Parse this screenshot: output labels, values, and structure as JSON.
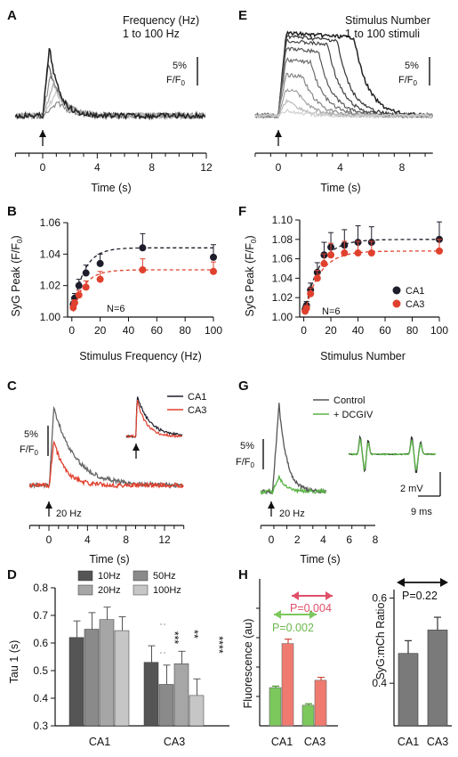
{
  "colors": {
    "ca1": "#1d1d2b",
    "ca3": "#e0412e",
    "control": "#555555",
    "dcgiv": "#5ab446",
    "g1": "#555555",
    "g2": "#8a8a8a",
    "g3": "#a8a8a8",
    "g4": "#c8c8c8",
    "hgreen": "#7cc85d",
    "hred": "#ef7b70",
    "hgrey": "#7a7a7a",
    "arrowRed": "#e0506a"
  },
  "chart_data": [
    {
      "panel": "A",
      "type": "line",
      "legend": [
        "Frequency (Hz)",
        "1 to 100 Hz"
      ],
      "scalebar": [
        "5%",
        "F/F",
        "0"
      ],
      "xlabel": "Time (s)",
      "xlim": [
        -2,
        12
      ],
      "xticks": [
        "0",
        "4",
        "8",
        "12"
      ],
      "stimulus_time": 0,
      "series": [
        {
          "peak_time": 0.4,
          "amplitude_pct": 6.5
        },
        {
          "peak_time": 0.6,
          "amplitude_pct": 5.2
        },
        {
          "peak_time": 0.8,
          "amplitude_pct": 4.0
        },
        {
          "peak_time": 1.0,
          "amplitude_pct": 2.8
        },
        {
          "peak_time": 1.2,
          "amplitude_pct": 1.6
        }
      ]
    },
    {
      "panel": "E",
      "type": "line",
      "legend": [
        "Stimulus Number",
        "1 to 100 stimuli"
      ],
      "scalebar": [
        "5%",
        "F/F",
        "0"
      ],
      "xlabel": "Time (s)",
      "xlim": [
        -1.5,
        10
      ],
      "xticks": [
        "0",
        "4",
        "8"
      ],
      "stimulus_time": 0,
      "series": [
        {
          "plateau_end": 4.9,
          "amplitude_pct": 11
        },
        {
          "plateau_end": 3.8,
          "amplitude_pct": 10.6
        },
        {
          "plateau_end": 3.2,
          "amplitude_pct": 10.0
        },
        {
          "plateau_end": 2.6,
          "amplitude_pct": 9.0
        },
        {
          "plateau_end": 2.1,
          "amplitude_pct": 7.5
        },
        {
          "plateau_end": 1.6,
          "amplitude_pct": 5.5
        },
        {
          "plateau_end": 1.2,
          "amplitude_pct": 3.5
        },
        {
          "plateau_end": 0.8,
          "amplitude_pct": 2.0
        },
        {
          "plateau_end": 0.5,
          "amplitude_pct": 0.8
        }
      ]
    },
    {
      "panel": "B",
      "type": "scatter",
      "xlabel": "Stimulus Frequency (Hz)",
      "ylabel": [
        "SyG Peak (F/F",
        "0",
        ")"
      ],
      "xlim": [
        -3,
        100
      ],
      "ylim": [
        1.0,
        1.06
      ],
      "xticks": [
        "0",
        "20",
        "40",
        "60",
        "80",
        "100"
      ],
      "yticks": [
        "1.00",
        "1.02",
        "1.04",
        "1.06"
      ],
      "annotation": "N=6",
      "series": [
        {
          "name": "CA1",
          "x": [
            1,
            2,
            5,
            10,
            20,
            50,
            100
          ],
          "y": [
            1.008,
            1.012,
            1.02,
            1.028,
            1.034,
            1.044,
            1.038
          ],
          "err": [
            0.002,
            0.003,
            0.004,
            0.005,
            0.006,
            0.009,
            0.008
          ]
        },
        {
          "name": "CA3",
          "x": [
            1,
            2,
            5,
            10,
            20,
            50,
            100
          ],
          "y": [
            1.006,
            1.009,
            1.014,
            1.019,
            1.024,
            1.03,
            1.029
          ],
          "err": [
            0.002,
            0.002,
            0.003,
            0.004,
            0.005,
            0.007,
            0.006
          ]
        }
      ]
    },
    {
      "panel": "F",
      "type": "scatter",
      "xlabel": "Stimulus Number",
      "ylabel": [
        "SyG Peak (F/F",
        "0",
        ")"
      ],
      "xlim": [
        -3,
        100
      ],
      "ylim": [
        1.0,
        1.1
      ],
      "xticks": [
        "0",
        "20",
        "40",
        "60",
        "80",
        "100"
      ],
      "yticks": [
        "1.00",
        "1.02",
        "1.04",
        "1.06",
        "1.08",
        "1.10"
      ],
      "annotation": "N=6",
      "legend": [
        "CA1",
        "CA3"
      ],
      "series": [
        {
          "name": "CA1",
          "x": [
            1,
            2,
            5,
            10,
            15,
            20,
            30,
            40,
            50,
            100
          ],
          "y": [
            1.008,
            1.012,
            1.028,
            1.046,
            1.064,
            1.072,
            1.074,
            1.077,
            1.077,
            1.08
          ],
          "err": [
            0.003,
            0.004,
            0.007,
            0.01,
            0.013,
            0.015,
            0.016,
            0.017,
            0.016,
            0.018
          ]
        },
        {
          "name": "CA3",
          "x": [
            1,
            2,
            5,
            10,
            15,
            20,
            30,
            40,
            50,
            100
          ],
          "y": [
            1.006,
            1.009,
            1.024,
            1.04,
            1.055,
            1.064,
            1.066,
            1.066,
            1.066,
            1.068
          ],
          "err": [
            0.002,
            0.003,
            0.006,
            0.008,
            0.01,
            0.012,
            0.012,
            0.012,
            0.012,
            0.012
          ]
        }
      ]
    },
    {
      "panel": "C",
      "type": "line",
      "xlabel": "Time (s)",
      "xlim": [
        -2,
        14
      ],
      "xticks": [
        "0",
        "4",
        "8",
        "12"
      ],
      "scalebar": [
        "5%",
        "F/F",
        "0"
      ],
      "stimulus": "20 Hz",
      "legend": [
        "CA1",
        "CA3"
      ],
      "series": [
        {
          "name": "CA1",
          "peak_pct": 8.8,
          "tau_s": 2.2
        },
        {
          "name": "CA3",
          "peak_pct": 5.0,
          "tau_s": 1.2
        }
      ]
    },
    {
      "panel": "G",
      "type": "line",
      "xlabel": "Time (s)",
      "xlim": [
        -0.8,
        8
      ],
      "xticks": [
        "0",
        "2",
        "4",
        "6",
        "8"
      ],
      "scalebar": [
        "5%",
        "F/F",
        "0"
      ],
      "stimulus": "20 Hz",
      "legend": [
        "Control",
        "+ DCGIV"
      ],
      "inset_scalebar": [
        "2 mV",
        "9 ms"
      ],
      "series": [
        {
          "name": "Control",
          "peak_pct": 9.8,
          "tau_s": 0.6
        },
        {
          "name": "+ DCGIV",
          "peak_pct": 1.7,
          "tau_s": 0.5
        }
      ]
    },
    {
      "panel": "D",
      "type": "bar",
      "ylabel": "Tau 1 (s)",
      "ylim": [
        0.3,
        0.8
      ],
      "yticks": [
        "0.3",
        "0.4",
        "0.5",
        "0.6",
        "0.7",
        "0.8"
      ],
      "categories": [
        "CA1",
        "CA3"
      ],
      "legend": [
        "10Hz",
        "20Hz",
        "50Hz",
        "100Hz"
      ],
      "significance": [
        "***",
        "**",
        "****"
      ],
      "series": [
        {
          "name": "10Hz",
          "values": [
            0.62,
            0.53
          ],
          "err": [
            0.06,
            0.06
          ]
        },
        {
          "name": "50Hz",
          "values": [
            0.65,
            0.45
          ],
          "err": [
            0.06,
            0.07
          ]
        },
        {
          "name": "20Hz",
          "values": [
            0.685,
            0.525
          ],
          "err": [
            0.045,
            0.045
          ]
        },
        {
          "name": "100Hz",
          "values": [
            0.645,
            0.41
          ],
          "err": [
            0.05,
            0.06
          ]
        }
      ]
    },
    {
      "panel": "H",
      "type": "bar",
      "ylabel": "Fluorescence (au)",
      "categories": [
        "CA1",
        "CA3"
      ],
      "ylim": [
        0,
        1
      ],
      "series": [
        {
          "name": "green",
          "values": [
            0.26,
            0.14
          ],
          "err": [
            0.01,
            0.01
          ]
        },
        {
          "name": "red",
          "values": [
            0.56,
            0.31
          ],
          "err": [
            0.03,
            0.02
          ]
        }
      ],
      "pvalues": [
        "P=0.002",
        "P=0.004"
      ]
    },
    {
      "panel": "H2",
      "type": "bar",
      "ylabel": "SyG:mCh Ratio",
      "categories": [
        "CA1",
        "CA3"
      ],
      "ylim": [
        0.3,
        0.62
      ],
      "yticks": [
        "0.4",
        "0.6"
      ],
      "values": [
        0.47,
        0.525
      ],
      "err": [
        0.03,
        0.03
      ],
      "pvalue": "P=0.22"
    }
  ]
}
